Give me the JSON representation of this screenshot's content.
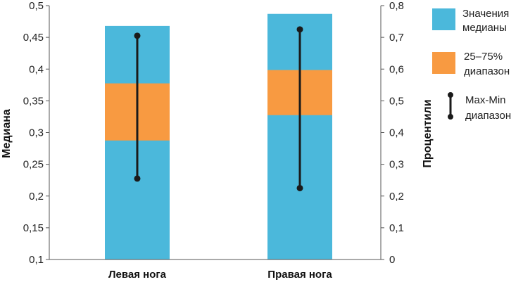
{
  "chart_data": {
    "type": "bar",
    "categories": [
      "Левая нога",
      "Правая нога"
    ],
    "median_values": [
      0.468,
      0.487
    ],
    "percentile_25_75": [
      [
        0.375,
        0.555
      ],
      [
        0.455,
        0.597
      ]
    ],
    "max_min_range": [
      [
        0.255,
        0.705
      ],
      [
        0.225,
        0.725
      ]
    ],
    "ylabel_left": "Медиана",
    "ylabel_right": "Процентили",
    "ylim_left": [
      0.1,
      0.5
    ],
    "ylim_right": [
      0,
      0.8
    ],
    "yticks_left": [
      "0,1",
      "0,15",
      "0,2",
      "0,25",
      "0,3",
      "0,35",
      "0,4",
      "0,45",
      "0,5"
    ],
    "yticks_right": [
      "0",
      "0,1",
      "0,2",
      "0,3",
      "0,4",
      "0,5",
      "0,6",
      "0,7",
      "0,8"
    ],
    "legend": [
      {
        "label_line1": "Значения",
        "label_line2": "медианы",
        "color": "#4BB8DB"
      },
      {
        "label_line1": "25–75%",
        "label_line2": "диапазон",
        "color": "#F89A41"
      },
      {
        "label_line1": "Max-Min",
        "label_line2": "диапазон",
        "color": "#1A1A1A"
      }
    ],
    "legend_position": "right",
    "grid": false,
    "colors": {
      "median": "#4BB8DB",
      "iqr": "#F89A41",
      "range": "#1A1A1A",
      "axis": "#555555"
    }
  }
}
